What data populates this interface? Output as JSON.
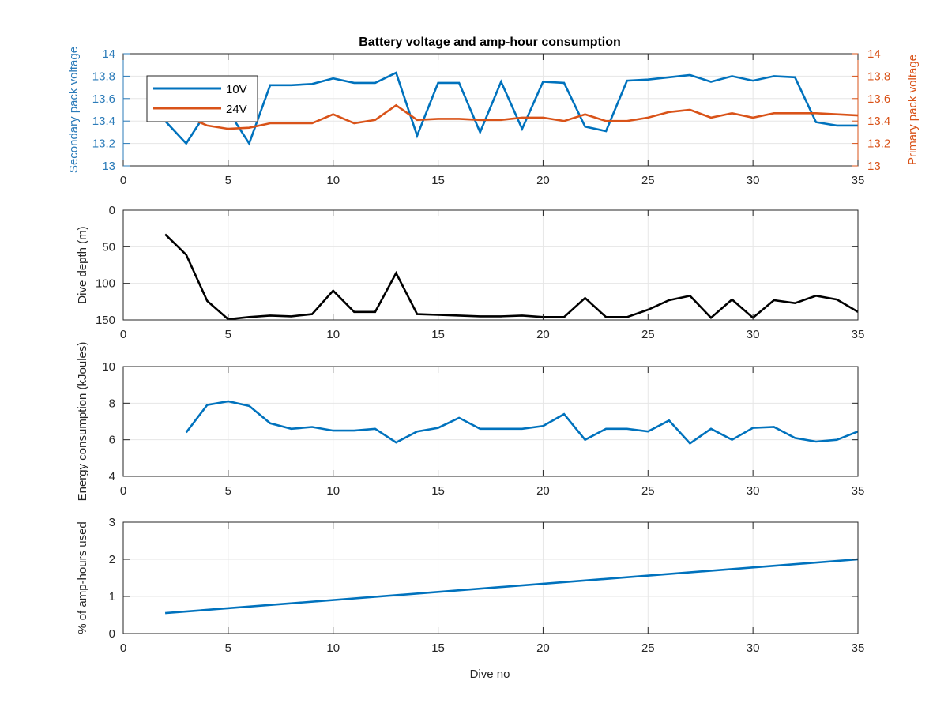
{
  "figure": {
    "title": "Battery voltage and amp-hour consumption",
    "xlabel": "Dive no"
  },
  "chart_data": [
    {
      "type": "line",
      "xlim": [
        0,
        35
      ],
      "xticks": [
        0,
        5,
        10,
        15,
        20,
        25,
        30,
        35
      ],
      "grid": true,
      "legend_position": "top-left",
      "left_axis": {
        "label": "Secondary pack voltage",
        "ylim": [
          13,
          14
        ],
        "ticks": [
          13,
          13.2,
          13.4,
          13.6,
          13.8,
          14
        ],
        "color": "#2b7bb9"
      },
      "right_axis": {
        "label": "Primary pack voltage",
        "ylim": [
          13,
          14
        ],
        "ticks": [
          13,
          13.2,
          13.4,
          13.6,
          13.8,
          14
        ],
        "color": "#d95319"
      },
      "series": [
        {
          "name": "10V",
          "axis": "left",
          "color": "#0072bd",
          "x": [
            2,
            3,
            4,
            5,
            6,
            7,
            8,
            9,
            10,
            11,
            12,
            13,
            14,
            15,
            16,
            17,
            18,
            19,
            20,
            21,
            22,
            23,
            24,
            25,
            26,
            27,
            28,
            29,
            30,
            31,
            32,
            33,
            34,
            35
          ],
          "y": [
            13.4,
            13.2,
            13.49,
            13.49,
            13.2,
            13.72,
            13.72,
            13.73,
            13.78,
            13.74,
            13.74,
            13.83,
            13.27,
            13.74,
            13.74,
            13.3,
            13.75,
            13.33,
            13.75,
            13.74,
            13.35,
            13.31,
            13.76,
            13.77,
            13.79,
            13.81,
            13.75,
            13.8,
            13.76,
            13.8,
            13.79,
            13.39,
            13.36,
            13.36
          ]
        },
        {
          "name": "24V",
          "axis": "right",
          "color": "#d95319",
          "x": [
            2,
            3,
            4,
            5,
            6,
            7,
            8,
            9,
            10,
            11,
            12,
            13,
            14,
            15,
            16,
            17,
            18,
            19,
            20,
            21,
            22,
            23,
            24,
            25,
            26,
            27,
            28,
            29,
            30,
            31,
            32,
            33,
            34,
            35
          ],
          "y": [
            13.45,
            13.44,
            13.36,
            13.33,
            13.34,
            13.38,
            13.38,
            13.38,
            13.46,
            13.38,
            13.41,
            13.54,
            13.41,
            13.42,
            13.42,
            13.41,
            13.41,
            13.43,
            13.43,
            13.4,
            13.46,
            13.4,
            13.4,
            13.43,
            13.48,
            13.5,
            13.43,
            13.47,
            13.43,
            13.47,
            13.47,
            13.47,
            13.46,
            13.45
          ]
        }
      ]
    },
    {
      "type": "line",
      "ylabel": "Dive depth (m)",
      "ylim": [
        0,
        150
      ],
      "yreversed": true,
      "yticks": [
        0,
        50,
        100,
        150
      ],
      "xlim": [
        0,
        35
      ],
      "xticks": [
        0,
        5,
        10,
        15,
        20,
        25,
        30,
        35
      ],
      "grid": true,
      "series": [
        {
          "color": "#000000",
          "x": [
            2,
            3,
            4,
            5,
            6,
            7,
            8,
            9,
            10,
            11,
            12,
            13,
            14,
            15,
            16,
            17,
            18,
            19,
            20,
            21,
            22,
            23,
            24,
            25,
            26,
            27,
            28,
            29,
            30,
            31,
            32,
            33,
            34,
            35
          ],
          "y": [
            33,
            61,
            124,
            149,
            146,
            144,
            145,
            142,
            110,
            139,
            139,
            86,
            142,
            143,
            144,
            145,
            145,
            144,
            146,
            146,
            120,
            146,
            146,
            136,
            123,
            117,
            147,
            122,
            147,
            123,
            127,
            117,
            122,
            139
          ]
        }
      ]
    },
    {
      "type": "line",
      "ylabel": "Energy consumption (kJoules)",
      "ylim": [
        4,
        10
      ],
      "yticks": [
        4,
        6,
        8,
        10
      ],
      "xlim": [
        0,
        35
      ],
      "xticks": [
        0,
        5,
        10,
        15,
        20,
        25,
        30,
        35
      ],
      "grid": true,
      "series": [
        {
          "color": "#0072bd",
          "x": [
            3,
            4,
            5,
            6,
            7,
            8,
            9,
            10,
            11,
            12,
            13,
            14,
            15,
            16,
            17,
            18,
            19,
            20,
            21,
            22,
            23,
            24,
            25,
            26,
            27,
            28,
            29,
            30,
            31,
            32,
            33,
            34,
            35
          ],
          "y": [
            6.4,
            7.9,
            8.1,
            7.85,
            6.9,
            6.6,
            6.7,
            6.5,
            6.5,
            6.6,
            5.85,
            6.45,
            6.65,
            7.2,
            6.6,
            6.6,
            6.6,
            6.75,
            7.4,
            6.0,
            6.6,
            6.6,
            6.45,
            7.05,
            5.8,
            6.6,
            6.0,
            6.65,
            6.7,
            6.1,
            5.9,
            6.0,
            6.45
          ]
        }
      ]
    },
    {
      "type": "line",
      "ylabel": "% of amp-hours used",
      "ylim": [
        0,
        3
      ],
      "yticks": [
        0,
        1,
        2,
        3
      ],
      "xlim": [
        0,
        35
      ],
      "xticks": [
        0,
        5,
        10,
        15,
        20,
        25,
        30,
        35
      ],
      "grid": true,
      "series": [
        {
          "color": "#0072bd",
          "x": [
            2,
            35
          ],
          "y": [
            0.55,
            2.0
          ]
        }
      ]
    }
  ]
}
